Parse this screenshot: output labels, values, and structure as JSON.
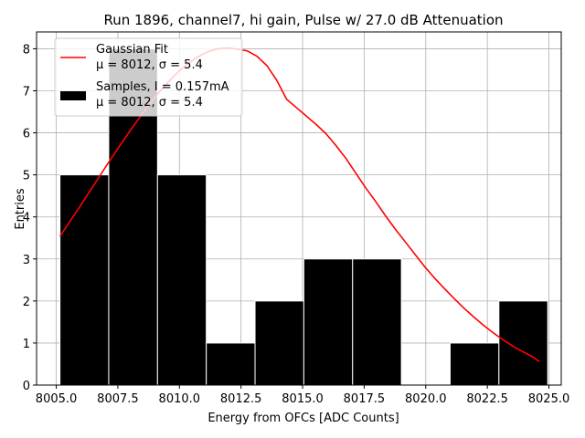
{
  "chart_data": {
    "type": "bar",
    "title": "Run 1896, channel7, hi gain, Pulse w/ 27.0 dB Attenuation",
    "xlabel": "Energy from OFCs [ADC Counts]",
    "ylabel": "Entries",
    "xlim": [
      8004.2,
      8025.5
    ],
    "ylim": [
      0,
      8.4
    ],
    "xticks": [
      8005.0,
      8007.5,
      8010.0,
      8012.5,
      8015.0,
      8017.5,
      8020.0,
      8022.5,
      8025.0
    ],
    "xtick_labels": [
      "8005.0",
      "8007.5",
      "8010.0",
      "8012.5",
      "8015.0",
      "8017.5",
      "8020.0",
      "8022.5",
      "8025.0"
    ],
    "yticks": [
      0,
      1,
      2,
      3,
      4,
      5,
      6,
      7,
      8
    ],
    "ytick_labels": [
      "0",
      "1",
      "2",
      "3",
      "4",
      "5",
      "6",
      "7",
      "8"
    ],
    "grid": true,
    "legend_position": "top-left",
    "histogram": {
      "name": "Samples, I = 0.157mA",
      "stats": "μ = 8012, σ = 5.4",
      "color": "#000000",
      "bins": [
        {
          "x0": 8005.15,
          "x1": 8007.13,
          "count": 5
        },
        {
          "x0": 8007.13,
          "x1": 8009.11,
          "count": 8
        },
        {
          "x0": 8009.11,
          "x1": 8011.09,
          "count": 5
        },
        {
          "x0": 8011.09,
          "x1": 8013.07,
          "count": 1
        },
        {
          "x0": 8013.07,
          "x1": 8015.05,
          "count": 2
        },
        {
          "x0": 8015.05,
          "x1": 8017.03,
          "count": 3
        },
        {
          "x0": 8017.03,
          "x1": 8019.01,
          "count": 3
        },
        {
          "x0": 8019.01,
          "x1": 8020.99,
          "count": 0
        },
        {
          "x0": 8020.99,
          "x1": 8022.97,
          "count": 1
        },
        {
          "x0": 8022.97,
          "x1": 8024.95,
          "count": 2
        }
      ]
    },
    "fit": {
      "name": "Gaussian Fit",
      "stats": "μ = 8012, σ = 5.4",
      "color": "#ff0000",
      "x": [
        8005.15,
        8005.55,
        8005.95,
        8006.35,
        8006.75,
        8007.15,
        8007.55,
        8007.95,
        8008.35,
        8008.75,
        8009.15,
        8009.55,
        8009.95,
        8010.35,
        8010.75,
        8011.15,
        8011.55,
        8011.95,
        8012.35,
        8012.75,
        8013.15,
        8013.55,
        8013.95,
        8014.35,
        8014.75,
        8015.15,
        8015.55,
        8015.95,
        8016.35,
        8016.75,
        8017.15,
        8017.55,
        8017.95,
        8018.35,
        8018.75,
        8019.15,
        8019.55,
        8019.95,
        8020.35,
        8020.75,
        8021.15,
        8021.55,
        8021.95,
        8022.35,
        8022.75,
        8023.15,
        8023.55,
        8023.95,
        8024.35,
        8024.6
      ],
      "y": [
        3.54,
        3.89,
        4.24,
        4.6,
        4.96,
        5.32,
        5.67,
        6.01,
        6.34,
        6.65,
        6.95,
        7.21,
        7.45,
        7.65,
        7.81,
        7.93,
        8.0,
        8.02,
        7.99,
        7.95,
        7.82,
        7.6,
        7.25,
        6.8,
        6.6,
        6.4,
        6.2,
        5.98,
        5.7,
        5.4,
        5.05,
        4.7,
        4.38,
        4.04,
        3.72,
        3.42,
        3.12,
        2.82,
        2.55,
        2.3,
        2.06,
        1.83,
        1.62,
        1.42,
        1.24,
        1.07,
        0.92,
        0.79,
        0.67,
        0.56
      ]
    }
  }
}
